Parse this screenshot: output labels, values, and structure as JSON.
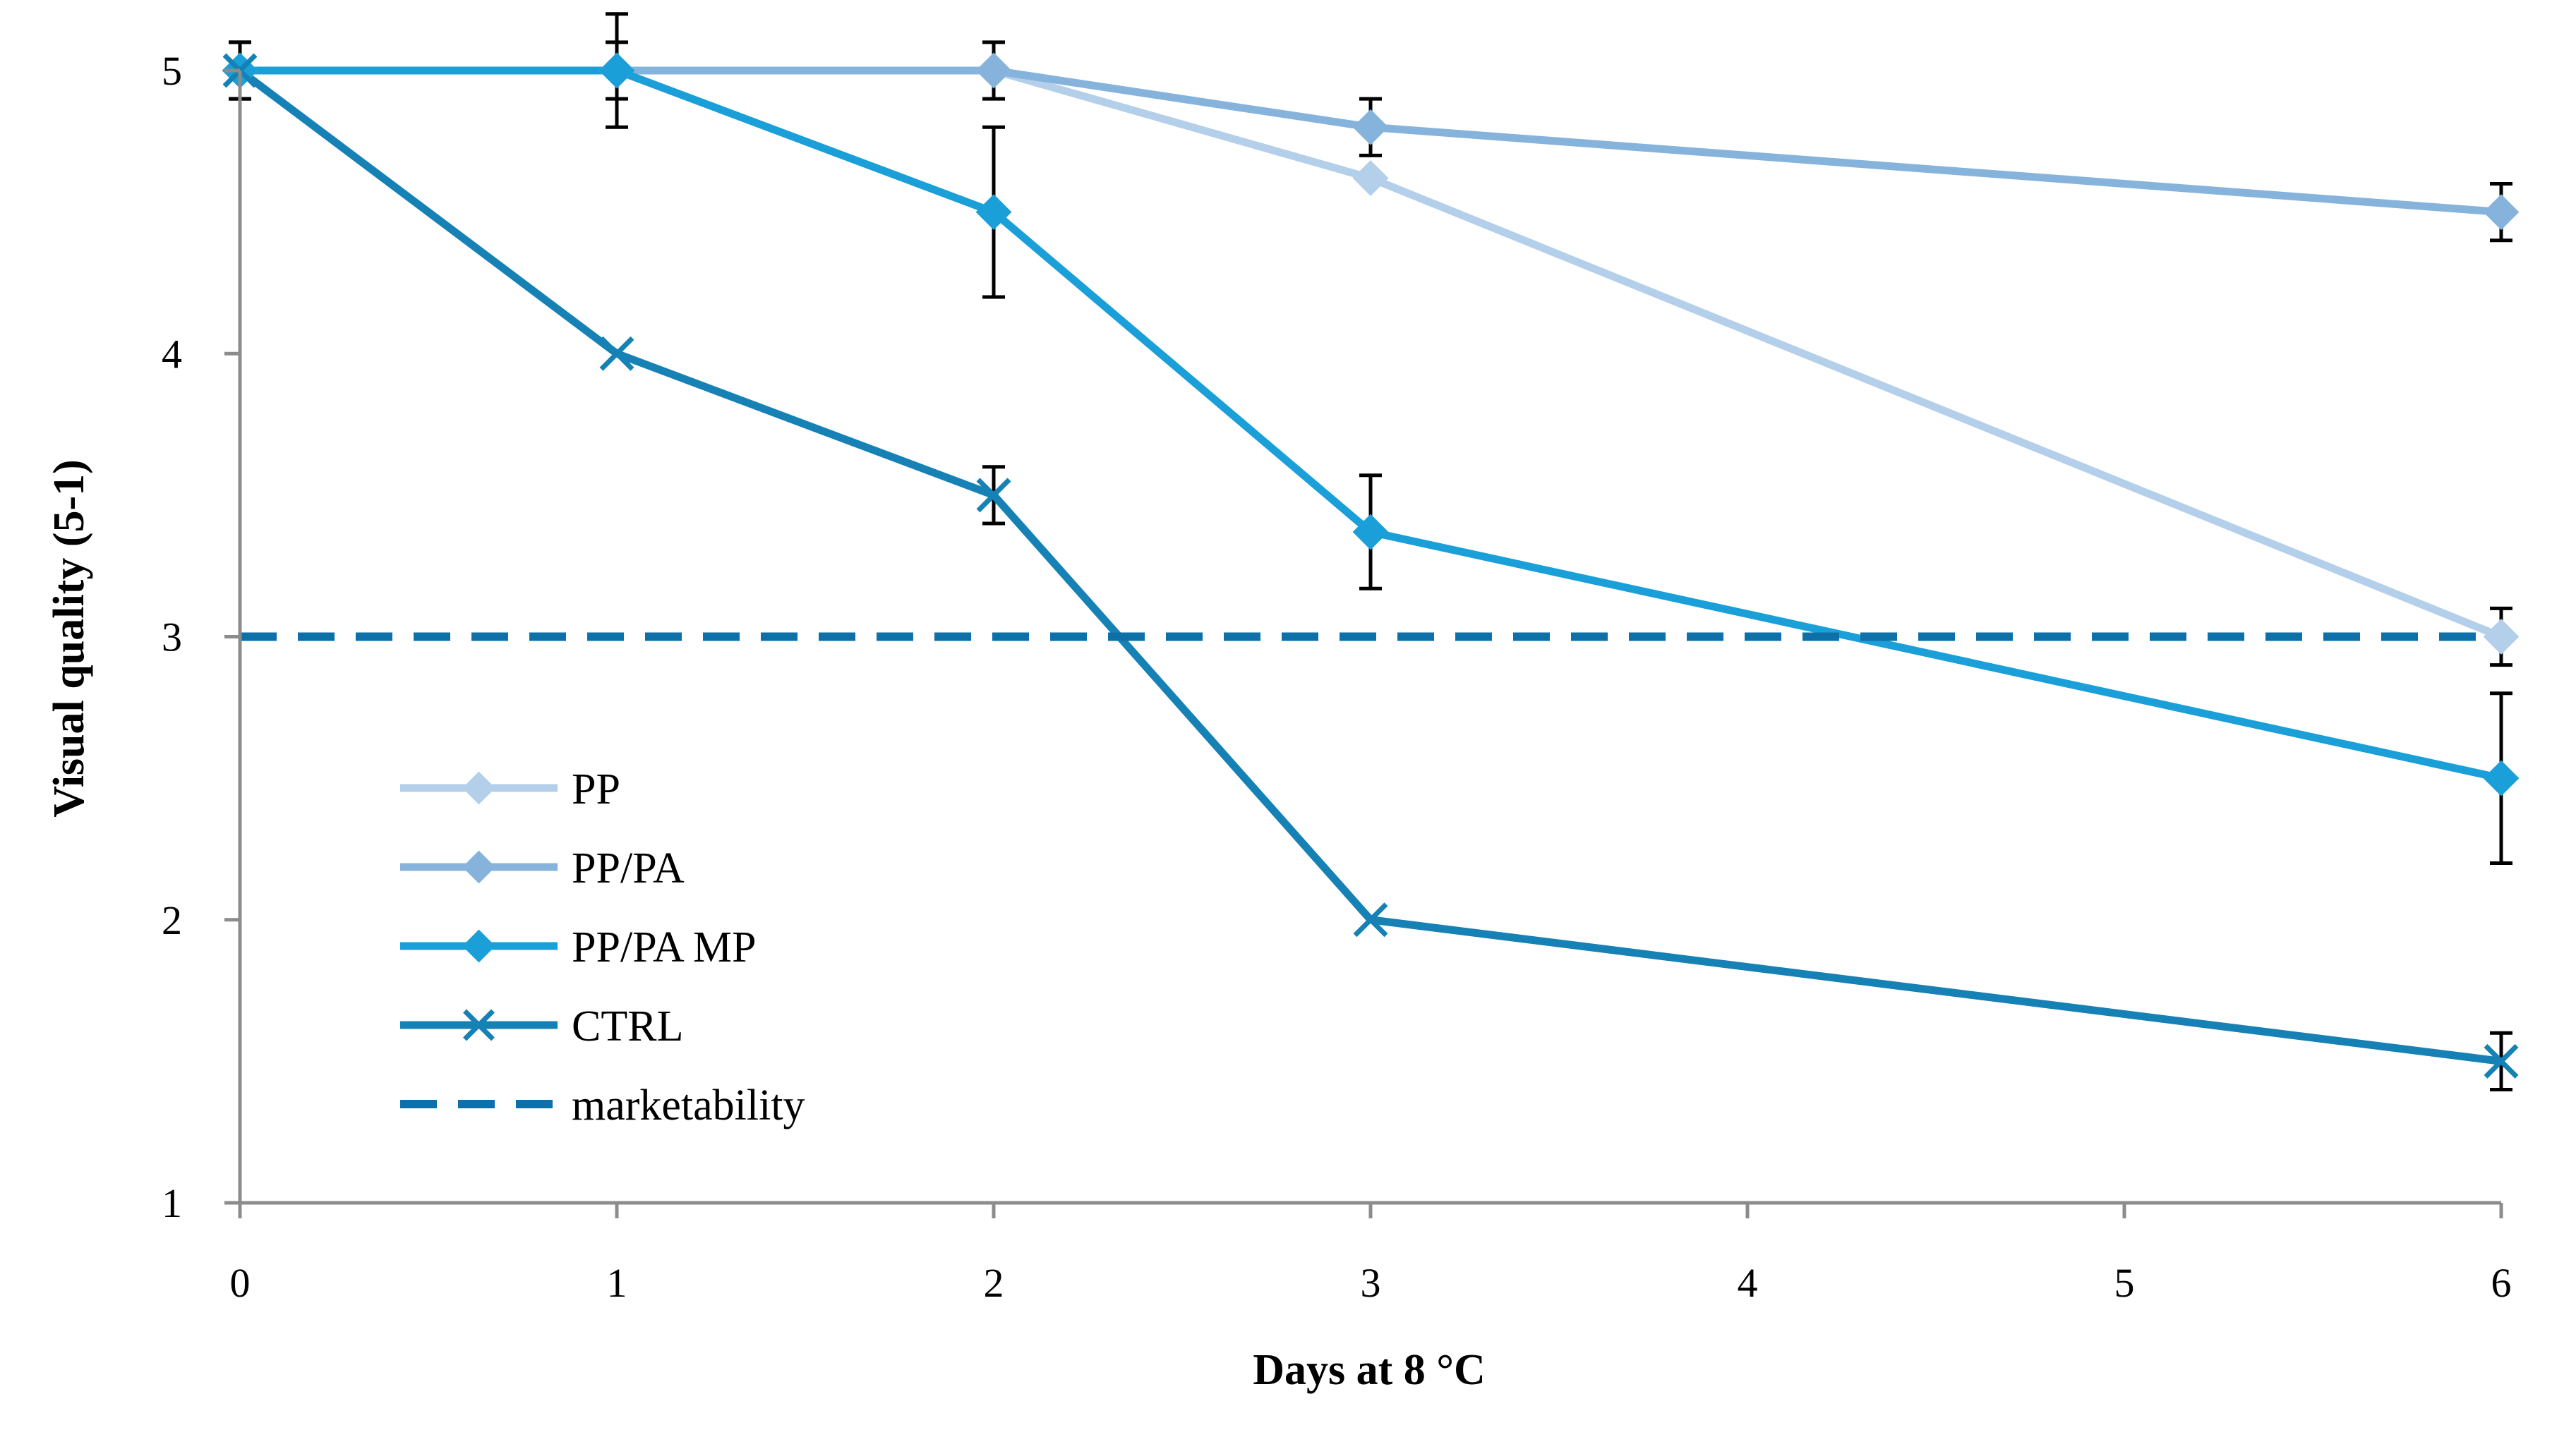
{
  "chart_data": {
    "type": "line",
    "title": "",
    "xlabel": "Days at 8 °C",
    "ylabel": "Visual quality (5-1)",
    "xlim": [
      0,
      6
    ],
    "ylim": [
      1,
      5
    ],
    "x_ticks": [
      "0",
      "1",
      "2",
      "3",
      "4",
      "5",
      "6"
    ],
    "y_ticks": [
      "1",
      "2",
      "3",
      "4",
      "5"
    ],
    "grid": false,
    "legend_position": "center-left",
    "series": [
      {
        "name": "PP",
        "color": "#b4cfea",
        "marker": "diamond",
        "x": [
          0,
          1,
          2,
          3,
          6
        ],
        "values": [
          5,
          5,
          5,
          4.62,
          3
        ],
        "errors": [
          0,
          0,
          0,
          0,
          0.1
        ]
      },
      {
        "name": "PP/PA",
        "color": "#86b3dc",
        "marker": "diamond",
        "x": [
          0,
          1,
          2,
          3,
          6
        ],
        "values": [
          5,
          5,
          5,
          4.8,
          4.5
        ],
        "errors": [
          0.1,
          0.1,
          0.1,
          0.1,
          0.1
        ]
      },
      {
        "name": "PP/PA MP",
        "color": "#1a9fd8",
        "marker": "diamond",
        "x": [
          0,
          1,
          2,
          3,
          6
        ],
        "values": [
          5,
          5,
          4.5,
          3.37,
          2.5
        ],
        "errors": [
          0,
          0.2,
          0.3,
          0.2,
          0.3
        ]
      },
      {
        "name": "CTRL",
        "color": "#1681b5",
        "marker": "x",
        "x": [
          0,
          1,
          2,
          3,
          6
        ],
        "values": [
          5,
          4,
          3.5,
          2,
          1.5
        ],
        "errors": [
          0.1,
          0,
          0.1,
          0,
          0.1
        ]
      },
      {
        "name": "marketability",
        "color": "#0e70a8",
        "marker": "none",
        "dashed": true,
        "x": [
          0,
          6
        ],
        "values": [
          3,
          3
        ],
        "errors": [
          0,
          0
        ]
      }
    ]
  }
}
